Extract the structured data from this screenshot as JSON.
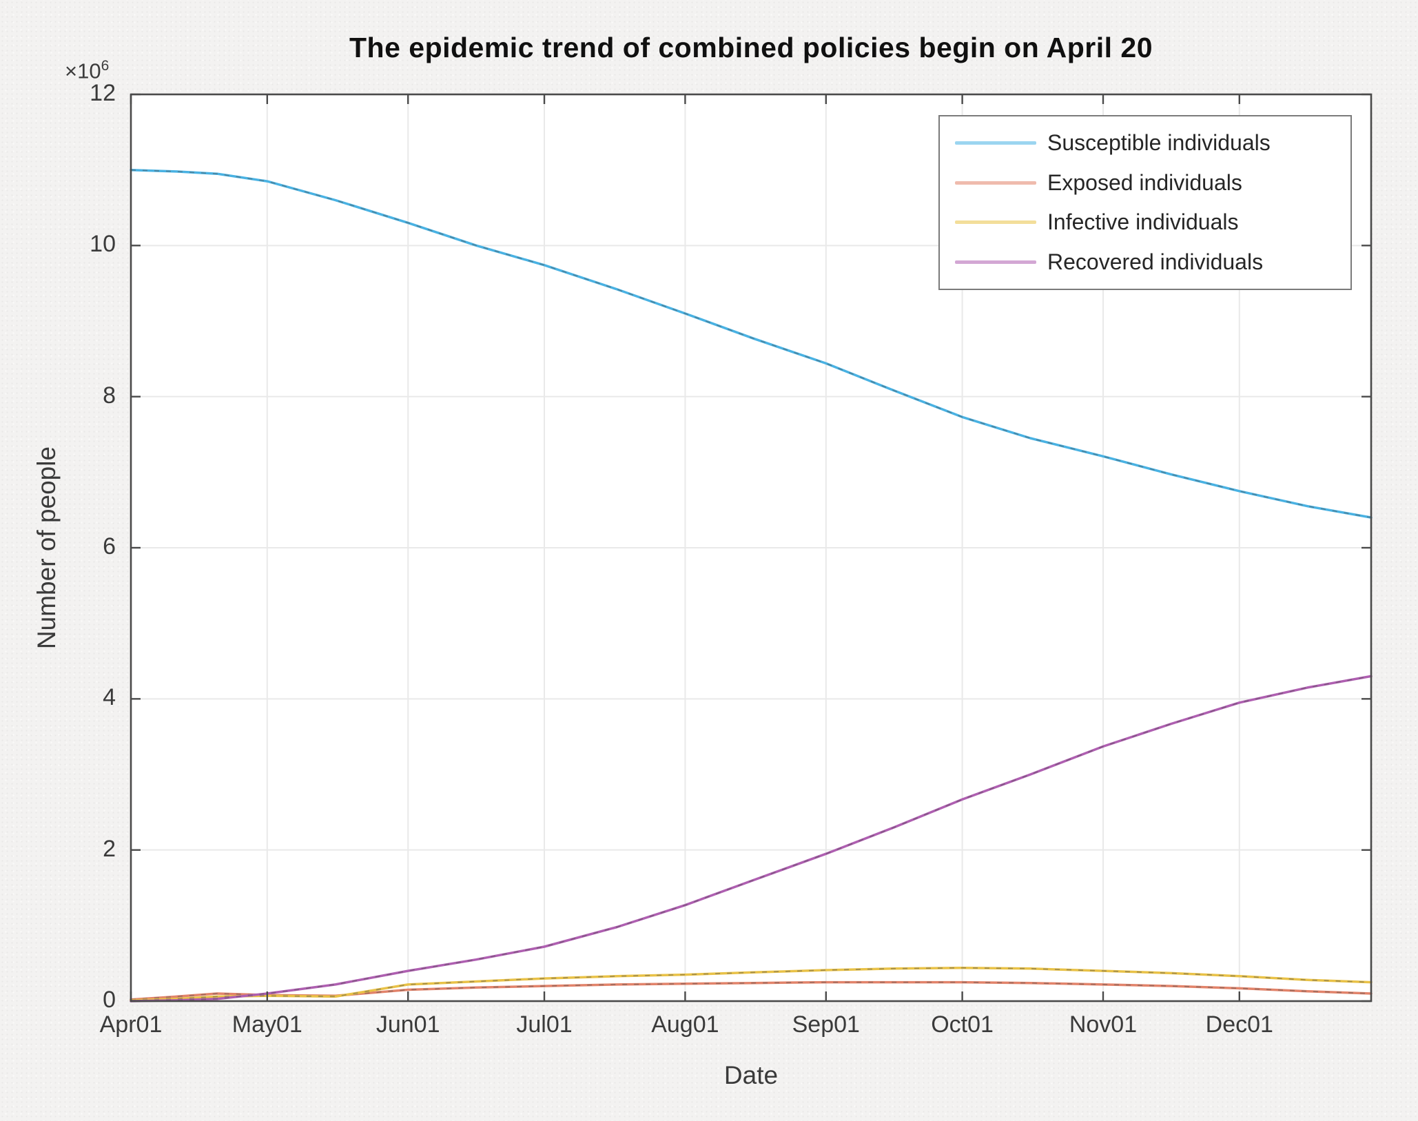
{
  "figure": {
    "title": "The epidemic trend of combined policies begin on April 20",
    "xlabel": "Date",
    "ylabel": "Number of people",
    "y_exponent": {
      "base": "×10",
      "exp": "6"
    }
  },
  "legend": {
    "position": "top-right",
    "entries": [
      "Susceptible individuals",
      "Exposed individuals",
      "Infective individuals",
      "Recovered individuals"
    ]
  },
  "chart_data": {
    "type": "line",
    "title": "The epidemic trend of combined policies begin on April 20",
    "xlabel": "Date",
    "ylabel": "Number of people",
    "grid": true,
    "legend_position": "top-right",
    "x_unit": "days since Apr01",
    "xlim": [
      0,
      273
    ],
    "ylim_millions": [
      0,
      12
    ],
    "y_scale_note": "y values are millions of people (axis shows ×10^6)",
    "x_ticks": [
      {
        "day": 0,
        "label": "Apr01"
      },
      {
        "day": 30,
        "label": "May01"
      },
      {
        "day": 61,
        "label": "Jun01"
      },
      {
        "day": 91,
        "label": "Jul01"
      },
      {
        "day": 122,
        "label": "Aug01"
      },
      {
        "day": 153,
        "label": "Sep01"
      },
      {
        "day": 183,
        "label": "Oct01"
      },
      {
        "day": 214,
        "label": "Nov01"
      },
      {
        "day": 244,
        "label": "Dec01"
      }
    ],
    "y_ticks_millions": [
      0,
      2,
      4,
      6,
      8,
      10,
      12
    ],
    "x_days": [
      0,
      10,
      19,
      30,
      45,
      61,
      76,
      91,
      107,
      122,
      137,
      153,
      168,
      183,
      198,
      214,
      229,
      244,
      259,
      273
    ],
    "series": [
      {
        "name": "Susceptible individuals",
        "color": "#49b2e3",
        "values_millions": [
          11.0,
          10.98,
          10.95,
          10.85,
          10.6,
          10.3,
          10.0,
          9.74,
          9.42,
          9.1,
          8.77,
          8.44,
          8.08,
          7.73,
          7.45,
          7.21,
          6.97,
          6.75,
          6.55,
          6.4
        ]
      },
      {
        "name": "Exposed individuals",
        "color": "#e2836a",
        "values_millions": [
          0.02,
          0.06,
          0.1,
          0.08,
          0.07,
          0.15,
          0.18,
          0.2,
          0.22,
          0.23,
          0.24,
          0.25,
          0.25,
          0.25,
          0.24,
          0.22,
          0.2,
          0.17,
          0.13,
          0.1
        ]
      },
      {
        "name": "Infective individuals",
        "color": "#e9c247",
        "values_millions": [
          0.01,
          0.03,
          0.06,
          0.07,
          0.06,
          0.22,
          0.26,
          0.3,
          0.33,
          0.35,
          0.38,
          0.41,
          0.43,
          0.44,
          0.43,
          0.4,
          0.37,
          0.33,
          0.28,
          0.25
        ]
      },
      {
        "name": "Recovered individuals",
        "color": "#af5fb1",
        "values_millions": [
          0.0,
          0.01,
          0.03,
          0.1,
          0.22,
          0.4,
          0.55,
          0.72,
          0.98,
          1.27,
          1.6,
          1.95,
          2.3,
          2.67,
          3.0,
          3.37,
          3.67,
          3.95,
          4.15,
          4.3
        ]
      }
    ]
  }
}
